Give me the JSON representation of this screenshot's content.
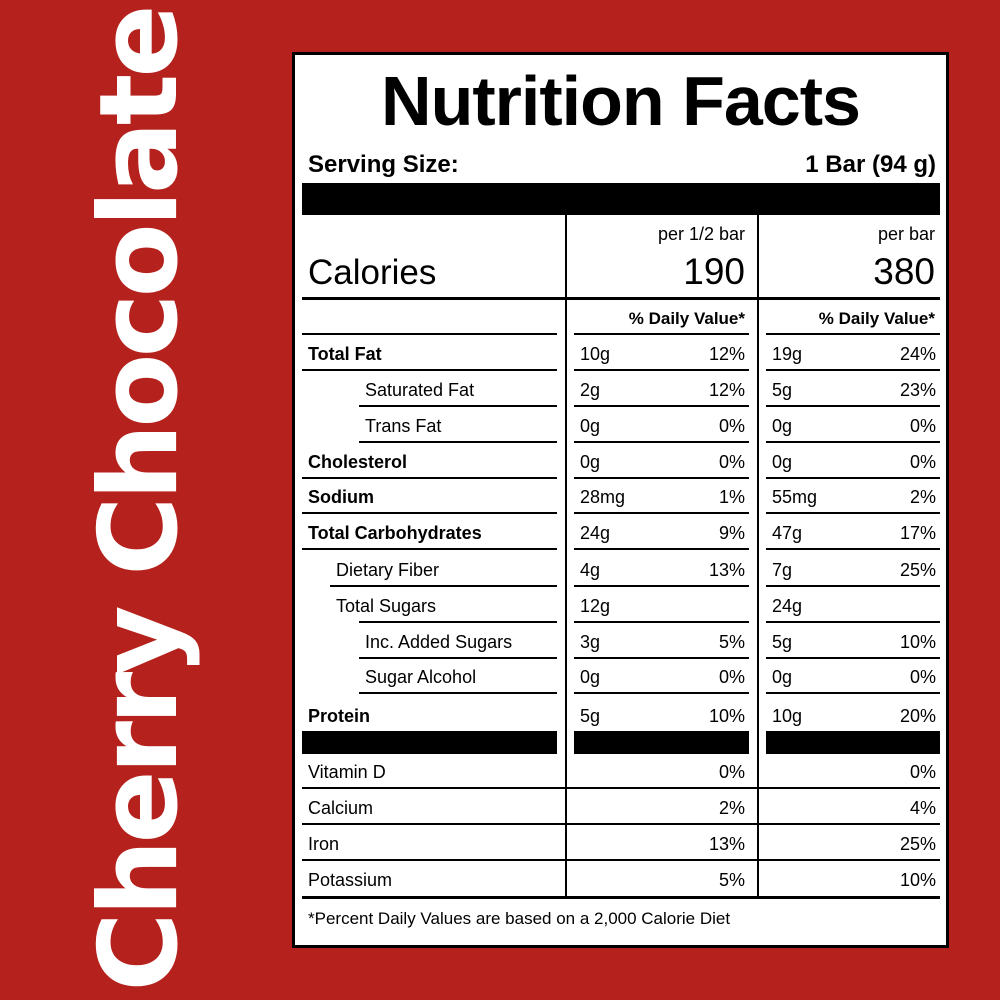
{
  "product_name": "Cherry Chocolate",
  "label": {
    "title": "Nutrition Facts",
    "serving_size_label": "Serving Size:",
    "serving_size_value": "1 Bar (94 g)",
    "columns": [
      {
        "per_label": "per 1/2 bar",
        "calories": "190",
        "dv_header": "% Daily Value*"
      },
      {
        "per_label": "per bar",
        "calories": "380",
        "dv_header": "% Daily Value*"
      }
    ],
    "calories_label": "Calories",
    "nutrients": [
      {
        "name": "Total Fat",
        "bold": true,
        "indent": 0,
        "c1_amount": "10g",
        "c1_dv": "12%",
        "c2_amount": "19g",
        "c2_dv": "24%"
      },
      {
        "name": "Saturated Fat",
        "bold": false,
        "indent": 2,
        "c1_amount": "2g",
        "c1_dv": "12%",
        "c2_amount": "5g",
        "c2_dv": "23%"
      },
      {
        "name": "Trans Fat",
        "bold": false,
        "indent": 2,
        "c1_amount": "0g",
        "c1_dv": "0%",
        "c2_amount": "0g",
        "c2_dv": "0%"
      },
      {
        "name": "Cholesterol",
        "bold": true,
        "indent": 0,
        "c1_amount": "0g",
        "c1_dv": "0%",
        "c2_amount": "0g",
        "c2_dv": "0%"
      },
      {
        "name": "Sodium",
        "bold": true,
        "indent": 0,
        "c1_amount": "28mg",
        "c1_dv": "1%",
        "c2_amount": "55mg",
        "c2_dv": "2%"
      },
      {
        "name": "Total Carbohydrates",
        "bold": true,
        "indent": 0,
        "c1_amount": "24g",
        "c1_dv": "9%",
        "c2_amount": "47g",
        "c2_dv": "17%"
      },
      {
        "name": "Dietary Fiber",
        "bold": false,
        "indent": 1,
        "c1_amount": "4g",
        "c1_dv": "13%",
        "c2_amount": "7g",
        "c2_dv": "25%"
      },
      {
        "name": "Total Sugars",
        "bold": false,
        "indent": 1,
        "c1_amount": "12g",
        "c1_dv": "",
        "c2_amount": "24g",
        "c2_dv": ""
      },
      {
        "name": "Inc. Added Sugars",
        "bold": false,
        "indent": 2,
        "c1_amount": "3g",
        "c1_dv": "5%",
        "c2_amount": "5g",
        "c2_dv": "10%"
      },
      {
        "name": "Sugar Alcohol",
        "bold": false,
        "indent": 2,
        "c1_amount": "0g",
        "c1_dv": "0%",
        "c2_amount": "0g",
        "c2_dv": "0%"
      },
      {
        "name": "Protein",
        "bold": true,
        "indent": 0,
        "c1_amount": "5g",
        "c1_dv": "10%",
        "c2_amount": "10g",
        "c2_dv": "20%"
      }
    ],
    "vitamins": [
      {
        "name": "Vitamin D",
        "c1_dv": "0%",
        "c2_dv": "0%"
      },
      {
        "name": "Calcium",
        "c1_dv": "2%",
        "c2_dv": "4%"
      },
      {
        "name": "Iron",
        "c1_dv": "13%",
        "c2_dv": "25%"
      },
      {
        "name": "Potassium",
        "c1_dv": "5%",
        "c2_dv": "10%"
      }
    ],
    "footnote": "*Percent Daily Values are based on a 2,000 Calorie Diet"
  },
  "colors": {
    "background": "#b5211c",
    "title_text": "#ffffff",
    "label_background": "#ffffff",
    "label_ink": "#000000"
  }
}
